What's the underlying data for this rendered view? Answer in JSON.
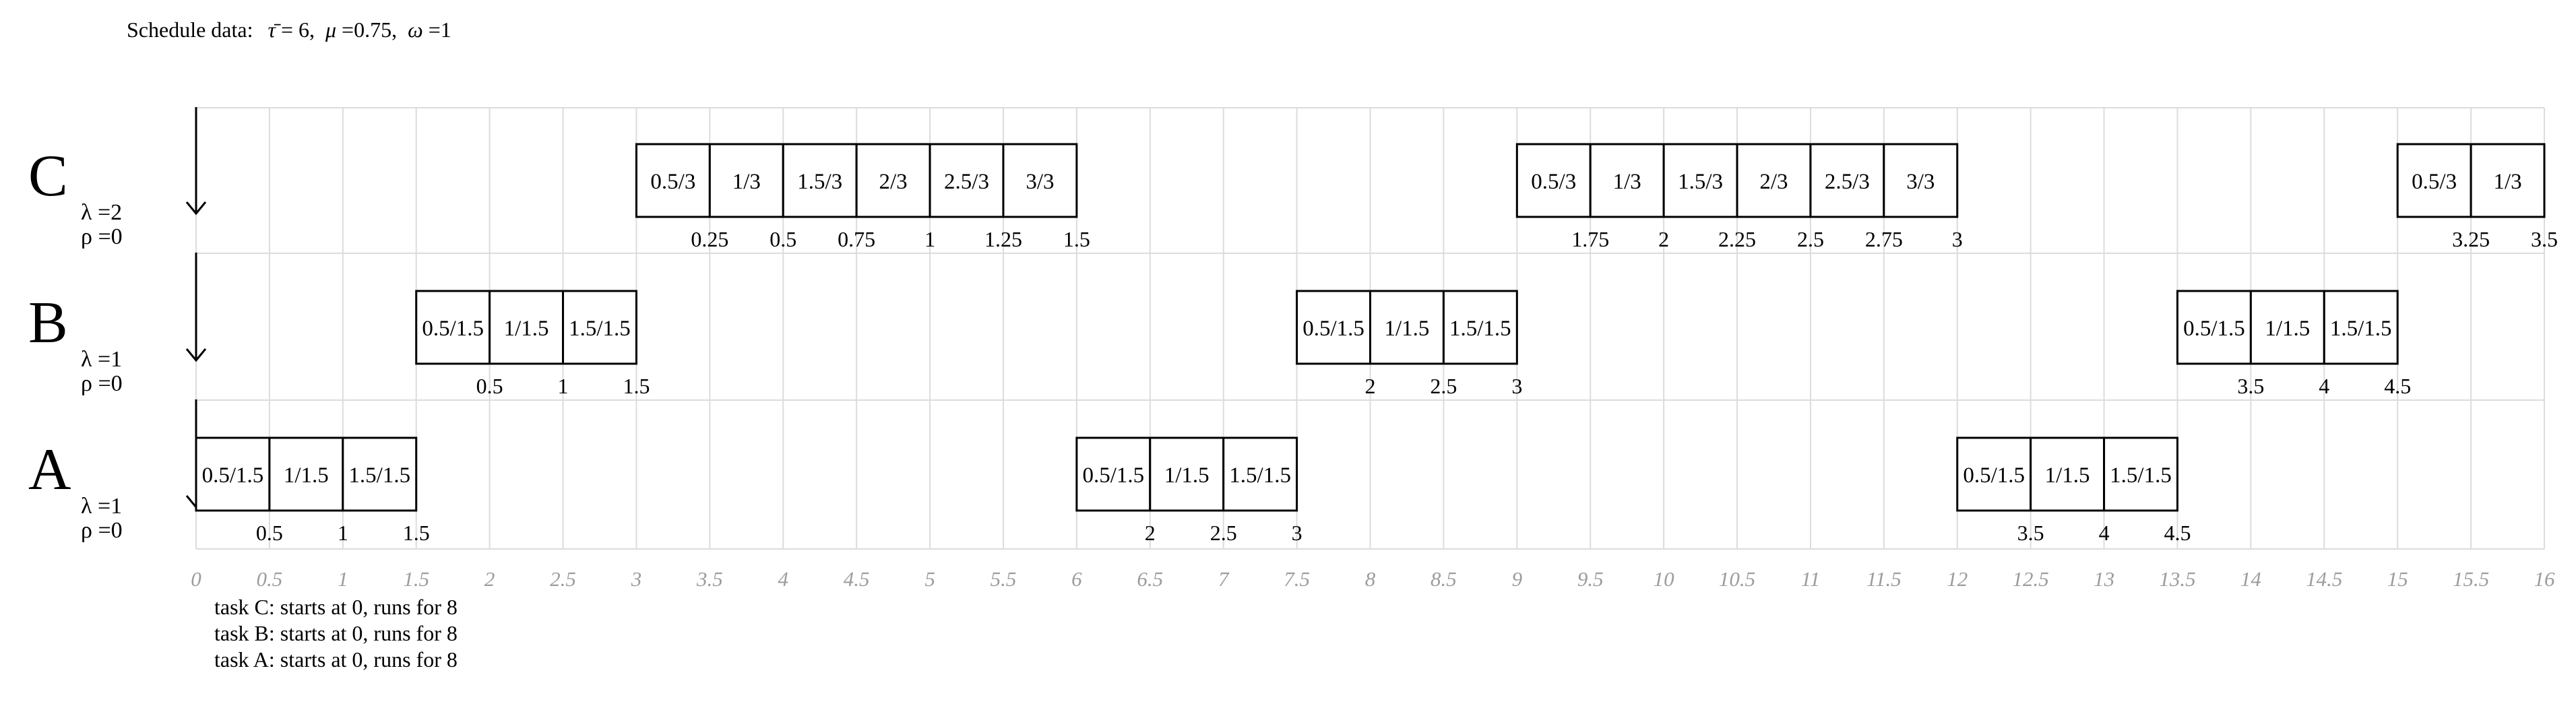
{
  "header": {
    "prefix": "Schedule data:",
    "tau_symbol": "τ̄",
    "tau_value": "= 6,",
    "mu_symbol": "μ",
    "mu_value": "=0.75,",
    "omega_symbol": "ω",
    "omega_value": "=1"
  },
  "chart_data": {
    "type": "gantt",
    "x_range": [
      0,
      16
    ],
    "x_ticks": [
      "0",
      "0.5",
      "1",
      "1.5",
      "2",
      "2.5",
      "3",
      "3.5",
      "4",
      "4.5",
      "5",
      "5.5",
      "6",
      "6.5",
      "7",
      "7.5",
      "8",
      "8.5",
      "9",
      "9.5",
      "10",
      "10.5",
      "11",
      "11.5",
      "12",
      "12.5",
      "13",
      "13.5",
      "14",
      "14.5",
      "15",
      "15.5",
      "16"
    ],
    "grid": true,
    "rows": [
      {
        "name": "C",
        "lambda_label": "λ =2",
        "rho_label": "ρ =0",
        "cell_width": 0.5,
        "blocks": [
          {
            "start": 3,
            "cells": [
              "0.5/3",
              "1/3",
              "1.5/3",
              "2/3",
              "2.5/3",
              "3/3"
            ],
            "ticks": [
              {
                "x": 3.5,
                "label": "0.25"
              },
              {
                "x": 4,
                "label": "0.5"
              },
              {
                "x": 4.5,
                "label": "0.75"
              },
              {
                "x": 5,
                "label": "1"
              },
              {
                "x": 5.5,
                "label": "1.25"
              },
              {
                "x": 6,
                "label": "1.5"
              }
            ]
          },
          {
            "start": 9,
            "cells": [
              "0.5/3",
              "1/3",
              "1.5/3",
              "2/3",
              "2.5/3",
              "3/3"
            ],
            "ticks": [
              {
                "x": 9.5,
                "label": "1.75"
              },
              {
                "x": 10,
                "label": "2"
              },
              {
                "x": 10.5,
                "label": "2.25"
              },
              {
                "x": 11,
                "label": "2.5"
              },
              {
                "x": 11.5,
                "label": "2.75"
              },
              {
                "x": 12,
                "label": "3"
              }
            ]
          },
          {
            "start": 15,
            "cells": [
              "0.5/3",
              "1/3"
            ],
            "ticks": [
              {
                "x": 15.5,
                "label": "3.25"
              },
              {
                "x": 16,
                "label": "3.5"
              }
            ]
          }
        ]
      },
      {
        "name": "B",
        "lambda_label": "λ =1",
        "rho_label": "ρ =0",
        "cell_width": 0.5,
        "blocks": [
          {
            "start": 1.5,
            "cells": [
              "0.5/1.5",
              "1/1.5",
              "1.5/1.5"
            ],
            "ticks": [
              {
                "x": 2,
                "label": "0.5"
              },
              {
                "x": 2.5,
                "label": "1"
              },
              {
                "x": 3,
                "label": "1.5"
              }
            ]
          },
          {
            "start": 7.5,
            "cells": [
              "0.5/1.5",
              "1/1.5",
              "1.5/1.5"
            ],
            "ticks": [
              {
                "x": 8,
                "label": "2"
              },
              {
                "x": 8.5,
                "label": "2.5"
              },
              {
                "x": 9,
                "label": "3"
              }
            ]
          },
          {
            "start": 13.5,
            "cells": [
              "0.5/1.5",
              "1/1.5",
              "1.5/1.5"
            ],
            "ticks": [
              {
                "x": 14,
                "label": "3.5"
              },
              {
                "x": 14.5,
                "label": "4"
              },
              {
                "x": 15,
                "label": "4.5"
              }
            ]
          }
        ]
      },
      {
        "name": "A",
        "lambda_label": "λ =1",
        "rho_label": "ρ =0",
        "cell_width": 0.5,
        "blocks": [
          {
            "start": 0,
            "cells": [
              "0.5/1.5",
              "1/1.5",
              "1.5/1.5"
            ],
            "ticks": [
              {
                "x": 0.5,
                "label": "0.5"
              },
              {
                "x": 1,
                "label": "1"
              },
              {
                "x": 1.5,
                "label": "1.5"
              }
            ]
          },
          {
            "start": 6,
            "cells": [
              "0.5/1.5",
              "1/1.5",
              "1.5/1.5"
            ],
            "ticks": [
              {
                "x": 6.5,
                "label": "2"
              },
              {
                "x": 7,
                "label": "2.5"
              },
              {
                "x": 7.5,
                "label": "3"
              }
            ]
          },
          {
            "start": 12,
            "cells": [
              "0.5/1.5",
              "1/1.5",
              "1.5/1.5"
            ],
            "ticks": [
              {
                "x": 12.5,
                "label": "3.5"
              },
              {
                "x": 13,
                "label": "4"
              },
              {
                "x": 13.5,
                "label": "4.5"
              }
            ]
          }
        ]
      }
    ]
  },
  "notes": [
    "task C: starts at 0, runs for 8",
    "task B: starts at 0, runs for 8",
    "task A: starts at 0, runs for 8"
  ],
  "colors": {
    "grid": "#dcdcdc",
    "axis_label": "#9c9c9c",
    "box_stroke": "#000000",
    "box_fill": "#ffffff"
  }
}
